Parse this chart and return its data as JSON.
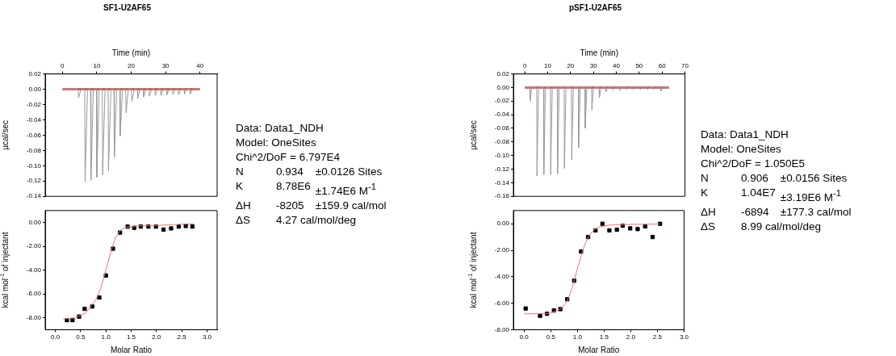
{
  "chart_data": [
    {
      "type": "line",
      "title": "SF1-U2AF65",
      "xlabel": "Time (min)",
      "ylabel": "µcal/sec",
      "xlim": [
        -5,
        45
      ],
      "xticks": [
        0,
        10,
        20,
        30,
        40
      ],
      "ylim": [
        -0.14,
        0.02
      ],
      "yticks": [
        {
          "value": 0.02,
          "label": "0.02"
        },
        {
          "value": 0,
          "label": "0.00"
        },
        {
          "value": -0.02,
          "label": "-0.02"
        },
        {
          "value": -0.04,
          "label": "-0.04"
        },
        {
          "value": -0.06,
          "label": "-0.06"
        },
        {
          "value": -0.08,
          "label": "-0.08"
        },
        {
          "value": -0.1,
          "label": "-0.10"
        },
        {
          "value": -0.12,
          "label": "-0.12"
        },
        {
          "value": -0.14,
          "label": "-0.14"
        }
      ],
      "series": [
        {
          "color": "#9a9a9a",
          "x": [
            0,
            4.6,
            4.7,
            5.4,
            6.5,
            6.6,
            7.3,
            8.2,
            8.3,
            9.0,
            9.9,
            10.0,
            10.7,
            11.6,
            11.7,
            12.4,
            13.3,
            13.4,
            14.1,
            15.0,
            15.1,
            15.8,
            16.7,
            16.8,
            17.5,
            18.4,
            18.5,
            19.2,
            20.1,
            20.2,
            20.9,
            21.8,
            21.9,
            22.6,
            23.5,
            23.6,
            24.3,
            25.2,
            25.3,
            26.0,
            26.9,
            27.0,
            27.7,
            28.6,
            28.7,
            29.4,
            30.3,
            30.4,
            31.1,
            32.0,
            32.1,
            32.8,
            33.7,
            33.8,
            34.5,
            35.4,
            35.5,
            36.2,
            37.1,
            37.2,
            37.9,
            40
          ],
          "values": [
            0,
            0,
            -0.011,
            0,
            0,
            -0.121,
            0,
            0,
            -0.119,
            0,
            0,
            -0.115,
            0,
            0,
            -0.112,
            0,
            0,
            -0.107,
            0,
            0,
            -0.089,
            0,
            0,
            -0.061,
            0,
            0,
            -0.031,
            0,
            0,
            -0.016,
            0,
            0,
            -0.012,
            0,
            0,
            -0.01,
            0,
            0,
            -0.009,
            0,
            0,
            -0.008,
            0,
            0,
            -0.008,
            0,
            0,
            -0.007,
            0,
            0,
            -0.007,
            0,
            0,
            -0.007,
            0,
            0,
            -0.006,
            0,
            0,
            -0.006,
            0,
            0
          ]
        },
        {
          "color": "#c83a3a",
          "x": [
            0,
            40
          ],
          "values": [
            0,
            0
          ]
        }
      ]
    },
    {
      "type": "scatter",
      "xlabel": "Molar Ratio",
      "ylabel": "kcal mol$^{-1}$ of injectant",
      "xlim": [
        -0.2,
        3.2
      ],
      "ylim": [
        -9,
        1
      ],
      "xticks": [
        {
          "value": 0,
          "label": "0.0"
        },
        {
          "value": 0.5,
          "label": "0.5"
        },
        {
          "value": 1,
          "label": "1.0"
        },
        {
          "value": 1.5,
          "label": "1.5"
        },
        {
          "value": 2,
          "label": "2.0"
        },
        {
          "value": 2.5,
          "label": "2.5"
        },
        {
          "value": 3,
          "label": "3.0"
        }
      ],
      "yticks": [
        {
          "value": 0,
          "label": "0.00"
        },
        {
          "value": -2,
          "label": "-2.00"
        },
        {
          "value": -4,
          "label": "-4.00"
        },
        {
          "value": -6,
          "label": "-6.00"
        },
        {
          "value": -8,
          "label": "-8.00"
        }
      ],
      "series": [
        {
          "type": "line",
          "marker": "none",
          "color": "#e8767a",
          "x": [
            0.15,
            0.4,
            0.6,
            0.8,
            0.9,
            1.0,
            1.1,
            1.2,
            1.3,
            1.4,
            1.6,
            2.0,
            2.5,
            2.75
          ],
          "values": [
            -8.1,
            -8.0,
            -7.6,
            -6.5,
            -5.5,
            -4.0,
            -2.4,
            -1.2,
            -0.6,
            -0.4,
            -0.3,
            -0.25,
            -0.15,
            -0.12
          ]
        },
        {
          "marker": "square",
          "color": "#000000",
          "x": [
            0.23,
            0.34,
            0.47,
            0.58,
            0.73,
            0.87,
            1.0,
            1.14,
            1.28,
            1.43,
            1.56,
            1.69,
            1.84,
            1.99,
            2.14,
            2.29,
            2.44,
            2.58,
            2.71
          ],
          "values": [
            -8.2,
            -8.2,
            -7.9,
            -7.25,
            -7.05,
            -6.3,
            -4.45,
            -2.2,
            -0.85,
            -0.35,
            -0.45,
            -0.35,
            -0.35,
            -0.35,
            -0.6,
            -0.5,
            -0.35,
            -0.3,
            -0.35
          ]
        }
      ]
    },
    {
      "type": "other",
      "annotations": [
        "Data: Data1_NDH",
        "Model: OneSites",
        "Chi^2/DoF = 6.797E4",
        "N\t0.934\t±0.0126 Sites",
        "K\t8.78E6\t±1.74E6 M$^{-1}$",
        "ΔH\t-8205\t±159.9 cal/mol",
        "ΔS\t4.27 cal/mol/deg"
      ]
    },
    {
      "type": "line",
      "title": "pSF1-U2AF65",
      "xlabel": "Time (min)",
      "ylabel": "µcal/sec",
      "xlim": [
        -5,
        70
      ],
      "xticks": [
        0,
        10,
        20,
        30,
        40,
        50,
        60,
        70
      ],
      "ylim": [
        -0.16,
        0.02
      ],
      "yticks": [
        {
          "value": 0.02,
          "label": "0.02"
        },
        {
          "value": 0,
          "label": "0.00"
        },
        {
          "value": -0.02,
          "label": "-0.02"
        },
        {
          "value": -0.04,
          "label": "-0.04"
        },
        {
          "value": -0.06,
          "label": "-0.06"
        },
        {
          "value": -0.08,
          "label": "-0.08"
        },
        {
          "value": -0.1,
          "label": "-0.10"
        },
        {
          "value": -0.12,
          "label": "-0.12"
        },
        {
          "value": -0.14,
          "label": "-0.14"
        },
        {
          "value": -0.16,
          "label": "-0.16"
        }
      ],
      "series": [
        {
          "color": "#9a9a9a",
          "x": [
            0,
            2.2,
            2.3,
            3.0,
            5.2,
            5.3,
            6.0,
            8.2,
            8.3,
            9.0,
            11.2,
            11.3,
            12.0,
            14.2,
            14.3,
            15.0,
            17.2,
            17.3,
            18.0,
            20.4,
            20.5,
            21.2,
            23.4,
            23.5,
            24.2,
            26.3,
            26.4,
            27.1,
            29.2,
            29.3,
            30.0,
            32.5,
            32.6,
            33.3,
            35.4,
            35.5,
            36.2,
            38.4,
            38.5,
            39.2,
            41.4,
            41.5,
            42.2,
            44.4,
            44.5,
            45.2,
            47.4,
            47.5,
            48.2,
            50.4,
            50.5,
            51.2,
            53.4,
            53.5,
            54.2,
            56.4,
            56.5,
            57.2,
            59.4,
            59.5,
            60.2,
            63
          ],
          "values": [
            0,
            0,
            -0.02,
            0,
            0,
            -0.13,
            0,
            0,
            -0.128,
            0,
            0,
            -0.128,
            0,
            0,
            -0.127,
            0,
            0,
            -0.119,
            0,
            0,
            -0.106,
            0,
            0,
            -0.088,
            0,
            0,
            -0.06,
            0,
            0,
            -0.033,
            0,
            0,
            -0.015,
            0,
            0,
            -0.006,
            0,
            0,
            -0.004,
            0,
            0,
            -0.004,
            0,
            0,
            -0.003,
            0,
            0,
            -0.003,
            0,
            0,
            -0.003,
            0,
            0,
            -0.003,
            0,
            0,
            -0.003,
            0,
            0,
            -0.005,
            0,
            0
          ]
        },
        {
          "color": "#c83a3a",
          "x": [
            0,
            63
          ],
          "values": [
            0,
            0
          ]
        }
      ]
    },
    {
      "type": "scatter",
      "xlabel": "Molar Ratio",
      "ylabel": "kcal mol$^{-1}$ of injectant",
      "xlim": [
        -0.2,
        3.0
      ],
      "ylim": [
        -8,
        1
      ],
      "xticks": [
        {
          "value": 0,
          "label": "0.0"
        },
        {
          "value": 0.5,
          "label": "0.5"
        },
        {
          "value": 1,
          "label": "1.0"
        },
        {
          "value": 1.5,
          "label": "1.5"
        },
        {
          "value": 2,
          "label": "2.0"
        },
        {
          "value": 2.5,
          "label": "2.5"
        },
        {
          "value": 3,
          "label": "3.0"
        }
      ],
      "yticks": [
        {
          "value": 0,
          "label": "0.00"
        },
        {
          "value": -2,
          "label": "-2.00"
        },
        {
          "value": -4,
          "label": "-4.00"
        },
        {
          "value": -6,
          "label": "-6.00"
        },
        {
          "value": -8,
          "label": "-8.00"
        }
      ],
      "series": [
        {
          "type": "line",
          "marker": "none",
          "color": "#e8767a",
          "x": [
            0,
            0.3,
            0.5,
            0.7,
            0.8,
            0.9,
            1.0,
            1.1,
            1.2,
            1.3,
            1.4,
            1.6,
            2.0,
            2.55
          ],
          "values": [
            -6.8,
            -6.8,
            -6.75,
            -6.4,
            -5.9,
            -4.9,
            -3.4,
            -2.0,
            -1.0,
            -0.5,
            -0.25,
            -0.1,
            -0.05,
            -0.02
          ]
        },
        {
          "marker": "square",
          "color": "#000000",
          "x": [
            0.03,
            0.3,
            0.43,
            0.56,
            0.68,
            0.81,
            0.94,
            1.07,
            1.2,
            1.34,
            1.47,
            1.6,
            1.74,
            1.85,
            1.99,
            2.13,
            2.27,
            2.41,
            2.55
          ],
          "values": [
            -6.4,
            -6.95,
            -6.8,
            -6.55,
            -6.45,
            -5.7,
            -4.3,
            -2.1,
            -1.0,
            -0.5,
            0.0,
            -0.5,
            -0.45,
            -0.15,
            -0.35,
            -0.4,
            -0.2,
            -1.0,
            0.0
          ]
        }
      ]
    },
    {
      "type": "other",
      "annotations": [
        "Data: Data1_NDH",
        "Model: OneSites",
        "Chi^2/DoF = 1.050E5",
        "N\t0.906\t±0.0156 Sites",
        "K\t1.04E7\t±3.19E6 M$^{-1}$",
        "ΔH\t-6894\t±177.3 cal/mol",
        "ΔS\t8.99 cal/mol/deg"
      ]
    }
  ]
}
